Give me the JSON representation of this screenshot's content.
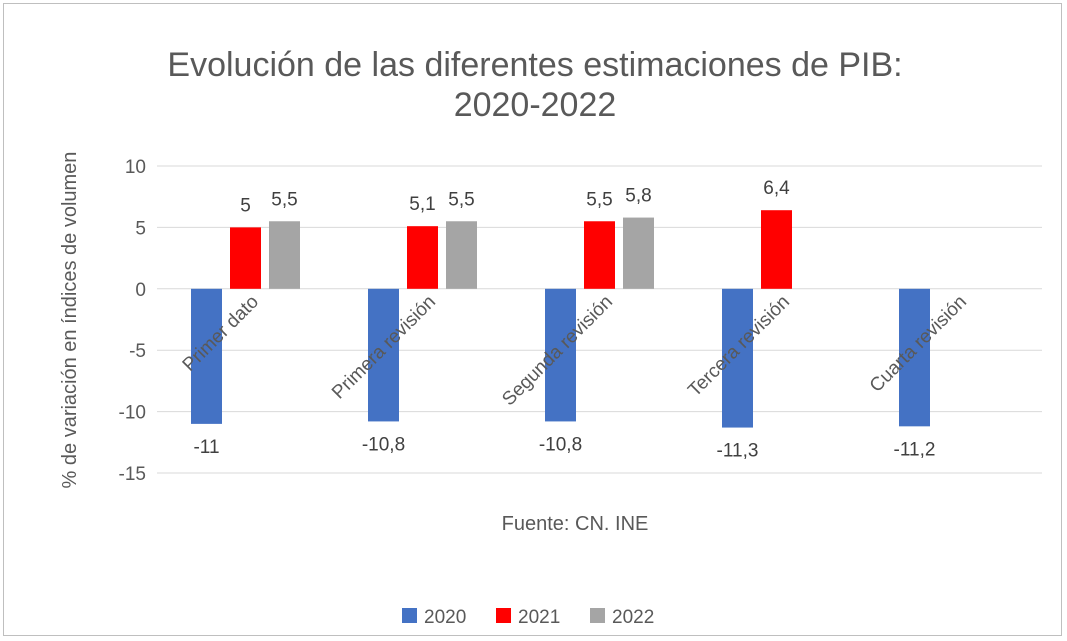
{
  "chart_data": {
    "type": "bar",
    "title": "Evolución de las diferentes estimaciones de PIB:",
    "subtitle": "2020-2022",
    "ylabel": "% de variación en índices de volumen",
    "xlabel": "",
    "source": "Fuente: CN. INE",
    "ylim": [
      -15,
      10
    ],
    "yticks": [
      10,
      5,
      0,
      -5,
      -10,
      -15
    ],
    "grid": true,
    "legend_position": "bottom",
    "categories": [
      "Primer dato",
      "Primera revisión",
      "Segunda revisión",
      "Tercera revisión",
      "Cuarta revisión"
    ],
    "series": [
      {
        "name": "2020",
        "color": "#4472c4",
        "values": [
          -11,
          -10.8,
          -10.8,
          -11.3,
          -11.2
        ],
        "labels": [
          "-11",
          "-10,8",
          "-10,8",
          "-11,3",
          "-11,2"
        ]
      },
      {
        "name": "2021",
        "color": "#ff0000",
        "values": [
          5,
          5.1,
          5.5,
          6.4,
          null
        ],
        "labels": [
          "5",
          "5,1",
          "5,5",
          "6,4",
          null
        ]
      },
      {
        "name": "2022",
        "color": "#a5a5a5",
        "values": [
          5.5,
          5.5,
          5.8,
          null,
          null
        ],
        "labels": [
          "5,5",
          "5,5",
          "5,8",
          null,
          null
        ]
      }
    ]
  }
}
